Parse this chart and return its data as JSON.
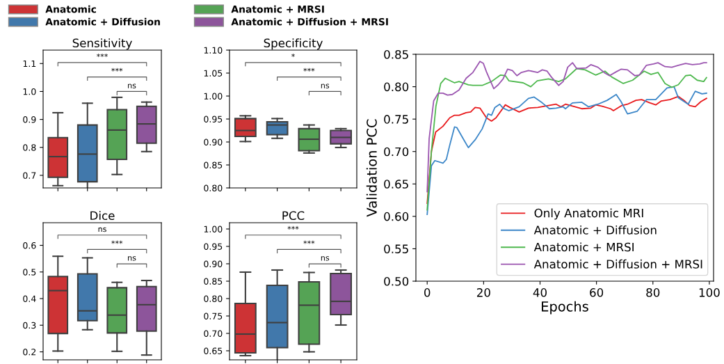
{
  "chart_data": [
    {
      "type": "box",
      "title": "Sensitivity",
      "categories": [
        null,
        null,
        null,
        null
      ],
      "legend": "top",
      "tick_labels": "y",
      "ylim": [
        0.655,
        1.148
      ],
      "yticks": [
        0.7,
        0.8,
        0.9,
        {
          "value": 1.0,
          "label": "1.0"
        },
        1.1
      ],
      "series": [
        {
          "name": "Anatomic",
          "color": "#cd3335",
          "boxes": [
            {
              "low": 0.663,
              "q1": 0.693,
              "median": 0.767,
              "q3": 0.835,
              "high": 0.924
            },
            null,
            null,
            null
          ]
        },
        {
          "name": "Anatomic + Diffusion",
          "color": "#4178ab",
          "boxes": [
            null,
            {
              "low": 0.649,
              "q1": 0.677,
              "median": 0.776,
              "q3": 0.88,
              "high": 0.958
            },
            null,
            null
          ]
        },
        {
          "name": "Anatomic + MRSI",
          "color": "#55a355",
          "boxes": [
            null,
            null,
            {
              "low": 0.703,
              "q1": 0.757,
              "median": 0.862,
              "q3": 0.935,
              "high": 0.979
            },
            null
          ]
        },
        {
          "name": "Anatomic + Diffusion + MRSI",
          "color": "#8d559b",
          "boxes": [
            null,
            null,
            null,
            {
              "low": 0.785,
              "q1": 0.815,
              "median": 0.884,
              "q3": 0.947,
              "high": 0.962
            }
          ]
        }
      ],
      "annotations": [
        "***",
        "***",
        "ns"
      ]
    },
    {
      "type": "box",
      "title": "Specificity",
      "categories": [
        null,
        null,
        null,
        null
      ],
      "tick_labels": "y",
      "ylim": [
        0.8,
        1.1
      ],
      "yticks": [
        {
          "value": 0.8,
          "label": "0.80"
        },
        0.85,
        {
          "value": 0.9,
          "label": "0.90"
        },
        0.95,
        {
          "value": 1.0,
          "label": "1.00"
        },
        1.05,
        {
          "value": 1.1,
          "label": "1.10"
        }
      ],
      "series": [
        {
          "color": "#cd3335",
          "boxes": [
            {
              "low": 0.901,
              "q1": 0.912,
              "median": 0.925,
              "q3": 0.951,
              "high": 0.957
            },
            null,
            null,
            null
          ]
        },
        {
          "color": "#4178ab",
          "boxes": [
            null,
            {
              "low": 0.908,
              "q1": 0.916,
              "median": 0.937,
              "q3": 0.944,
              "high": 0.951
            },
            null,
            null
          ]
        },
        {
          "color": "#55a355",
          "boxes": [
            null,
            null,
            {
              "low": 0.876,
              "q1": 0.881,
              "median": 0.906,
              "q3": 0.929,
              "high": 0.937
            },
            null
          ]
        },
        {
          "color": "#8d559b",
          "boxes": [
            null,
            null,
            null,
            {
              "low": 0.888,
              "q1": 0.896,
              "median": 0.91,
              "q3": 0.925,
              "high": 0.929
            }
          ]
        }
      ],
      "annotations": [
        "*",
        "***",
        "ns"
      ]
    },
    {
      "type": "line",
      "xlabel": "Epochs",
      "ylabel": "Validation PCC",
      "legend": "bottom right",
      "xlim": [
        -4,
        101.5
      ],
      "xticks": [
        0,
        20,
        40,
        60,
        80,
        100
      ],
      "ylim": [
        0.5,
        0.85
      ],
      "yticks": [
        {
          "value": 0.5,
          "label": "0.50"
        },
        0.55,
        {
          "value": 0.6,
          "label": "0.60"
        },
        0.65,
        {
          "value": 0.7,
          "label": "0.70"
        },
        0.75,
        {
          "value": 0.8,
          "label": "0.80"
        },
        0.85
      ],
      "series": [
        {
          "name": "Only Anatomic MRI",
          "color": "#e8191c",
          "x": [
            0,
            1.5,
            3,
            5.6,
            8,
            9.7,
            11.3,
            13.8,
            15.4,
            17,
            18.7,
            21,
            22.8,
            24.4,
            27.7,
            29.3,
            32.6,
            35.9,
            39.2,
            45.7,
            47.4,
            49,
            54.8,
            58,
            59.7,
            62,
            65,
            66,
            69,
            71,
            74,
            76,
            79,
            81,
            83,
            86,
            89,
            91,
            93,
            95,
            97,
            99
          ],
          "values": [
            0.62,
            0.7,
            0.73,
            0.739,
            0.752,
            0.756,
            0.756,
            0.76,
            0.761,
            0.768,
            0.767,
            0.752,
            0.747,
            0.752,
            0.772,
            0.768,
            0.761,
            0.767,
            0.768,
            0.773,
            0.769,
            0.773,
            0.766,
            0.767,
            0.772,
            0.77,
            0.766,
            0.763,
            0.771,
            0.773,
            0.779,
            0.78,
            0.775,
            0.772,
            0.778,
            0.78,
            0.785,
            0.779,
            0.771,
            0.769,
            0.777,
            0.782
          ]
        },
        {
          "name": "Anatomic + Diffusion",
          "color": "#3b86c8",
          "x": [
            0,
            1.5,
            2.7,
            5.6,
            6.8,
            8,
            9.7,
            10.5,
            13,
            14.6,
            17,
            19.5,
            21.6,
            22.8,
            24,
            25.7,
            26.9,
            28.9,
            32.6,
            35.9,
            37.9,
            40.8,
            43.3,
            45.7,
            48.2,
            49,
            51.5,
            54.8,
            57.2,
            60.5,
            63.8,
            67,
            68.7,
            71,
            74.4,
            77.7,
            81,
            85,
            87.5,
            89,
            92.5,
            95,
            97.4,
            99
          ],
          "values": [
            0.603,
            0.678,
            0.686,
            0.682,
            0.688,
            0.71,
            0.738,
            0.737,
            0.718,
            0.706,
            0.718,
            0.735,
            0.758,
            0.756,
            0.768,
            0.773,
            0.767,
            0.763,
            0.769,
            0.782,
            0.784,
            0.775,
            0.766,
            0.767,
            0.769,
            0.766,
            0.775,
            0.776,
            0.769,
            0.773,
            0.779,
            0.788,
            0.777,
            0.758,
            0.762,
            0.78,
            0.78,
            0.798,
            0.8,
            0.783,
            0.773,
            0.793,
            0.789,
            0.79
          ]
        },
        {
          "name": "Anatomic + MRSI",
          "color": "#4db84d",
          "x": [
            0,
            1.5,
            3.1,
            4.8,
            6.4,
            9.7,
            11.3,
            14.6,
            16.2,
            19.5,
            22.8,
            26,
            27.7,
            29,
            34,
            36.7,
            39,
            43,
            46.6,
            49,
            53,
            56,
            59.7,
            63,
            65.4,
            69.5,
            72.8,
            76.9,
            79.3,
            81.8,
            84.3,
            86.7,
            89,
            91.6,
            93.3,
            95.7,
            98,
            99
          ],
          "values": [
            0.61,
            0.7,
            0.77,
            0.805,
            0.813,
            0.806,
            0.808,
            0.803,
            0.802,
            0.802,
            0.808,
            0.818,
            0.817,
            0.809,
            0.806,
            0.8,
            0.809,
            0.812,
            0.808,
            0.812,
            0.828,
            0.826,
            0.818,
            0.824,
            0.815,
            0.805,
            0.81,
            0.824,
            0.819,
            0.822,
            0.805,
            0.799,
            0.803,
            0.817,
            0.818,
            0.81,
            0.808,
            0.814
          ]
        },
        {
          "name": "Anatomic + Diffusion + MRSI",
          "color": "#9b55b0",
          "x": [
            0,
            0.7,
            2.3,
            3.9,
            5.6,
            7.2,
            8.9,
            11.3,
            13.8,
            16.2,
            18.7,
            19.9,
            21,
            23.6,
            25.2,
            26.9,
            28.5,
            30.2,
            31.8,
            33.4,
            35.9,
            39.2,
            40.8,
            42.5,
            44,
            46.6,
            48.2,
            49.8,
            51.5,
            53,
            56.4,
            58,
            60.5,
            63,
            64.6,
            67,
            68.7,
            71,
            73.6,
            75.2,
            77.7,
            80.2,
            81.8,
            84.3,
            86.7,
            89,
            91.6,
            94,
            96.6,
            98,
            99
          ],
          "values": [
            0.638,
            0.72,
            0.778,
            0.79,
            0.79,
            0.787,
            0.788,
            0.795,
            0.813,
            0.822,
            0.839,
            0.836,
            0.823,
            0.797,
            0.803,
            0.812,
            0.827,
            0.825,
            0.817,
            0.822,
            0.825,
            0.822,
            0.826,
            0.824,
            0.815,
            0.802,
            0.808,
            0.83,
            0.837,
            0.828,
            0.829,
            0.834,
            0.83,
            0.821,
            0.817,
            0.823,
            0.827,
            0.826,
            0.817,
            0.818,
            0.833,
            0.835,
            0.837,
            0.831,
            0.83,
            0.833,
            0.836,
            0.834,
            0.835,
            0.837,
            0.837
          ]
        }
      ]
    },
    {
      "type": "box",
      "title": "Dice",
      "categories": [
        null,
        null,
        null,
        null
      ],
      "tick_labels": "y",
      "ylim": [
        0.17,
        0.685
      ],
      "yticks": [
        0.2,
        0.3,
        0.4,
        0.5,
        0.6
      ],
      "series": [
        {
          "color": "#cd3335",
          "boxes": [
            {
              "low": 0.203,
              "q1": 0.269,
              "median": 0.43,
              "q3": 0.483,
              "high": 0.559
            },
            null,
            null,
            null
          ]
        },
        {
          "color": "#4178ab",
          "boxes": [
            null,
            {
              "low": 0.283,
              "q1": 0.317,
              "median": 0.354,
              "q3": 0.493,
              "high": 0.553
            },
            null,
            null
          ]
        },
        {
          "color": "#55a355",
          "boxes": [
            null,
            null,
            {
              "low": 0.202,
              "q1": 0.271,
              "median": 0.338,
              "q3": 0.441,
              "high": 0.461
            },
            null
          ]
        },
        {
          "color": "#8d559b",
          "boxes": [
            null,
            null,
            null,
            {
              "low": 0.188,
              "q1": 0.278,
              "median": 0.377,
              "q3": 0.445,
              "high": 0.468
            }
          ]
        }
      ],
      "annotations": [
        "ns",
        "***",
        "ns"
      ]
    },
    {
      "type": "box",
      "title": "PCC",
      "categories": [
        null,
        null,
        null,
        null
      ],
      "tick_labels": "y",
      "ylim": [
        0.624,
        1.018
      ],
      "yticks": [
        0.65,
        {
          "value": 0.7,
          "label": "0.70"
        },
        0.75,
        {
          "value": 0.8,
          "label": "0.80"
        },
        0.85,
        {
          "value": 0.9,
          "label": "0.90"
        },
        0.95,
        {
          "value": 1.0,
          "label": "1.00"
        }
      ],
      "series": [
        {
          "color": "#cd3335",
          "boxes": [
            {
              "low": 0.636,
              "q1": 0.644,
              "median": 0.698,
              "q3": 0.786,
              "high": 0.876
            },
            null,
            null,
            null
          ]
        },
        {
          "color": "#4178ab",
          "boxes": [
            null,
            {
              "low": 0.622,
              "q1": 0.659,
              "median": 0.731,
              "q3": 0.838,
              "high": 0.882
            },
            null,
            null
          ]
        },
        {
          "color": "#55a355",
          "boxes": [
            null,
            null,
            {
              "low": 0.647,
              "q1": 0.669,
              "median": 0.781,
              "q3": 0.848,
              "high": 0.875
            },
            null
          ]
        },
        {
          "color": "#8d559b",
          "boxes": [
            null,
            null,
            null,
            {
              "low": 0.724,
              "q1": 0.754,
              "median": 0.792,
              "q3": 0.872,
              "high": 0.882
            }
          ]
        }
      ],
      "annotations": [
        "***",
        "***",
        "ns"
      ]
    }
  ]
}
